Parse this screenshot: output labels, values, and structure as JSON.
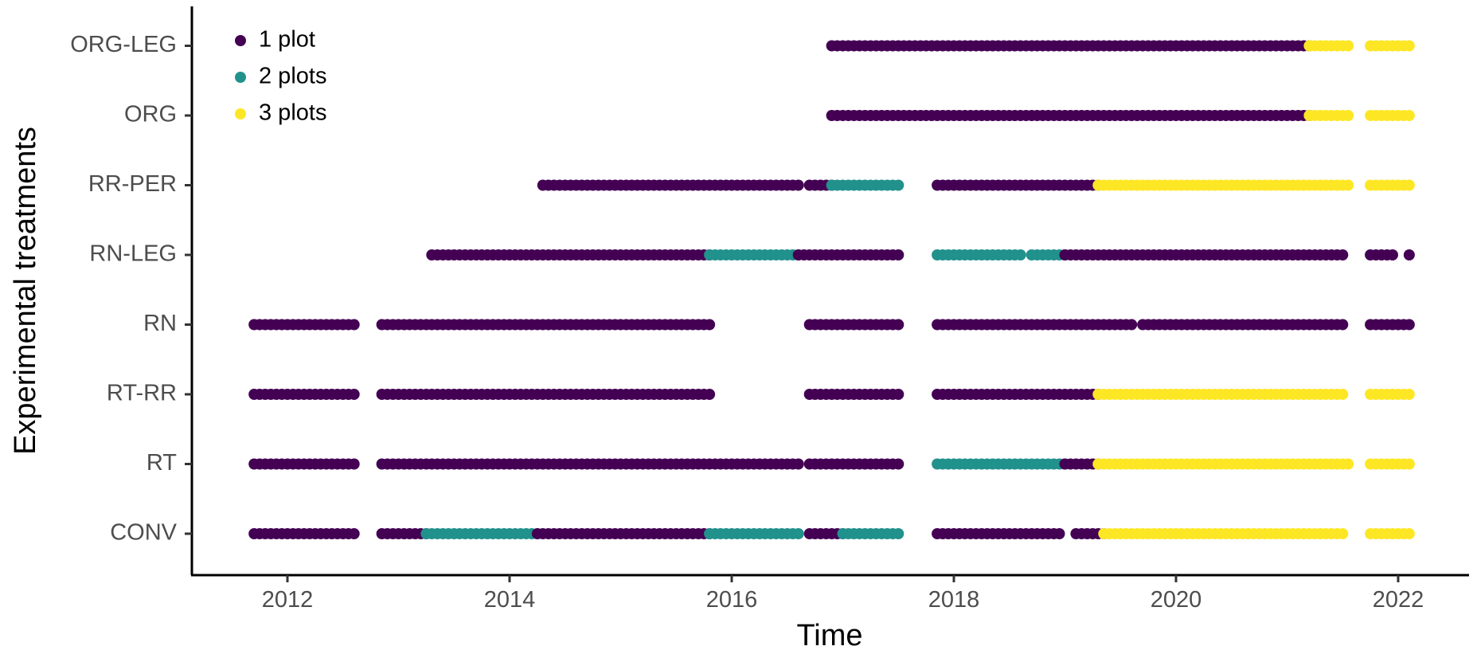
{
  "chart_data": {
    "type": "scatter",
    "xlabel": "Time",
    "ylabel": "Experimental treatments",
    "xlim": [
      2011.2,
      2023.2
    ],
    "xticks": [
      2012,
      2014,
      2016,
      2018,
      2020,
      2022
    ],
    "categories": [
      "CONV",
      "RT",
      "RT-RR",
      "RN",
      "RN-LEG",
      "RR-PER",
      "ORG",
      "ORG-LEG"
    ],
    "grid": false,
    "legend_position": "top-left",
    "colors": {
      "1 plot": "#440154",
      "2 plots": "#21918c",
      "3 plots": "#fde725"
    },
    "legend": [
      {
        "name": "1 plot",
        "color": "#440154"
      },
      {
        "name": "2 plots",
        "color": "#21918c"
      },
      {
        "name": "3 plots",
        "color": "#fde725"
      }
    ],
    "series": [
      {
        "name": "CONV",
        "segments": [
          {
            "from": 2011.7,
            "to": 2012.6,
            "level": 1
          },
          {
            "from": 2012.85,
            "to": 2013.25,
            "level": 1
          },
          {
            "from": 2013.25,
            "to": 2014.25,
            "level": 2
          },
          {
            "from": 2014.25,
            "to": 2015.8,
            "level": 1
          },
          {
            "from": 2015.8,
            "to": 2016.6,
            "level": 2
          },
          {
            "from": 2016.7,
            "to": 2017.0,
            "level": 1
          },
          {
            "from": 2017.0,
            "to": 2017.5,
            "level": 2
          },
          {
            "from": 2017.85,
            "to": 2018.95,
            "level": 1
          },
          {
            "from": 2019.1,
            "to": 2019.35,
            "level": 1
          },
          {
            "from": 2019.35,
            "to": 2021.5,
            "level": 3
          },
          {
            "from": 2021.75,
            "to": 2022.1,
            "level": 3
          }
        ]
      },
      {
        "name": "RT",
        "segments": [
          {
            "from": 2011.7,
            "to": 2012.6,
            "level": 1
          },
          {
            "from": 2012.85,
            "to": 2016.6,
            "level": 1
          },
          {
            "from": 2016.7,
            "to": 2017.5,
            "level": 1
          },
          {
            "from": 2017.85,
            "to": 2019.0,
            "level": 2
          },
          {
            "from": 2019.0,
            "to": 2019.3,
            "level": 1
          },
          {
            "from": 2019.3,
            "to": 2021.55,
            "level": 3
          },
          {
            "from": 2021.75,
            "to": 2022.1,
            "level": 3
          }
        ]
      },
      {
        "name": "RT-RR",
        "segments": [
          {
            "from": 2011.7,
            "to": 2012.6,
            "level": 1
          },
          {
            "from": 2012.85,
            "to": 2015.8,
            "level": 1
          },
          {
            "from": 2016.7,
            "to": 2017.5,
            "level": 1
          },
          {
            "from": 2017.85,
            "to": 2019.3,
            "level": 1
          },
          {
            "from": 2019.3,
            "to": 2021.5,
            "level": 3
          },
          {
            "from": 2021.75,
            "to": 2022.1,
            "level": 3
          }
        ]
      },
      {
        "name": "RN",
        "segments": [
          {
            "from": 2011.7,
            "to": 2012.6,
            "level": 1
          },
          {
            "from": 2012.85,
            "to": 2015.8,
            "level": 1
          },
          {
            "from": 2016.7,
            "to": 2017.5,
            "level": 1
          },
          {
            "from": 2017.85,
            "to": 2019.6,
            "level": 1
          },
          {
            "from": 2019.7,
            "to": 2021.5,
            "level": 1
          },
          {
            "from": 2021.75,
            "to": 2022.1,
            "level": 1
          }
        ]
      },
      {
        "name": "RN-LEG",
        "segments": [
          {
            "from": 2013.3,
            "to": 2015.8,
            "level": 1
          },
          {
            "from": 2015.8,
            "to": 2016.6,
            "level": 2
          },
          {
            "from": 2016.6,
            "to": 2017.5,
            "level": 1
          },
          {
            "from": 2017.85,
            "to": 2018.6,
            "level": 2
          },
          {
            "from": 2018.7,
            "to": 2019.0,
            "level": 2
          },
          {
            "from": 2019.0,
            "to": 2021.5,
            "level": 1
          },
          {
            "from": 2021.75,
            "to": 2021.95,
            "level": 1
          },
          {
            "from": 2022.1,
            "to": 2022.1,
            "level": 1
          }
        ]
      },
      {
        "name": "RR-PER",
        "segments": [
          {
            "from": 2014.3,
            "to": 2016.6,
            "level": 1
          },
          {
            "from": 2016.7,
            "to": 2016.9,
            "level": 1
          },
          {
            "from": 2016.9,
            "to": 2017.5,
            "level": 2
          },
          {
            "from": 2017.85,
            "to": 2019.3,
            "level": 1
          },
          {
            "from": 2019.3,
            "to": 2021.55,
            "level": 3
          },
          {
            "from": 2021.75,
            "to": 2022.1,
            "level": 3
          }
        ]
      },
      {
        "name": "ORG",
        "segments": [
          {
            "from": 2016.9,
            "to": 2021.2,
            "level": 1
          },
          {
            "from": 2021.2,
            "to": 2021.55,
            "level": 3
          },
          {
            "from": 2021.75,
            "to": 2022.1,
            "level": 3
          }
        ]
      },
      {
        "name": "ORG-LEG",
        "segments": [
          {
            "from": 2016.9,
            "to": 2021.2,
            "level": 1
          },
          {
            "from": 2021.2,
            "to": 2021.55,
            "level": 3
          },
          {
            "from": 2021.75,
            "to": 2022.1,
            "level": 3
          }
        ]
      }
    ]
  }
}
